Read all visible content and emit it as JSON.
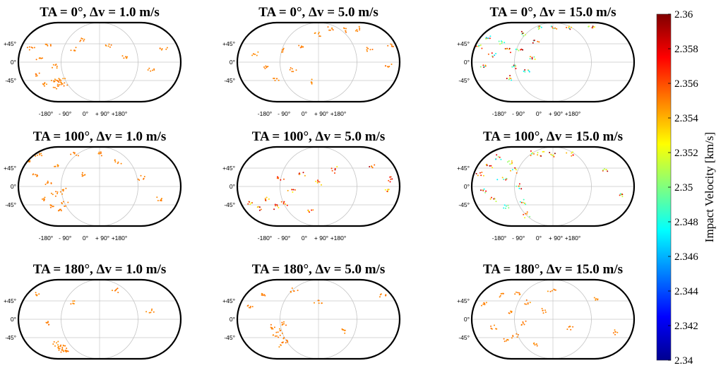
{
  "panels": [
    {
      "title": "TA = 0°, Δv = 1.0 m/s",
      "ta_deg": 0,
      "dv_ms": 1.0
    },
    {
      "title": "TA = 0°, Δv = 5.0 m/s",
      "ta_deg": 0,
      "dv_ms": 5.0
    },
    {
      "title": "TA = 0°, Δv = 15.0 m/s",
      "ta_deg": 0,
      "dv_ms": 15.0
    },
    {
      "title": "TA = 100°, Δv = 1.0 m/s",
      "ta_deg": 100,
      "dv_ms": 1.0
    },
    {
      "title": "TA = 100°, Δv = 5.0 m/s",
      "ta_deg": 100,
      "dv_ms": 5.0
    },
    {
      "title": "TA = 100°, Δv = 15.0 m/s",
      "ta_deg": 100,
      "dv_ms": 15.0
    },
    {
      "title": "TA = 180°, Δv = 1.0 m/s",
      "ta_deg": 180,
      "dv_ms": 1.0
    },
    {
      "title": "TA = 180°, Δv = 5.0 m/s",
      "ta_deg": 180,
      "dv_ms": 5.0
    },
    {
      "title": "TA = 180°, Δv = 15.0 m/s",
      "ta_deg": 180,
      "dv_ms": 15.0
    }
  ],
  "axes": {
    "lat_ticks": [
      "+45°",
      "0°",
      "-45°"
    ],
    "lon_ticks": [
      "-180°",
      "- 90°",
      "0°",
      "+ 90°",
      "+180°"
    ]
  },
  "colorbar": {
    "label": "Impact Velocity [km/s]",
    "min": 2.34,
    "max": 2.36,
    "ticks": [
      "2.36",
      "2.358",
      "2.356",
      "2.354",
      "2.352",
      "2.35",
      "2.348",
      "2.346",
      "2.344",
      "2.342",
      "2.34"
    ],
    "colormap": "jet"
  },
  "chart_data": {
    "type": "scatter",
    "projection": "Hammer-type equal-area lunar surface map, longitude -180° to +180°, latitude -90° to +90°",
    "colorbar_range": [
      2.34,
      2.36
    ],
    "colorbar_label": "Impact Velocity [km/s]",
    "panels": [
      {
        "title": "TA = 0°, Δv = 1.0 m/s",
        "dominant_velocity": 2.355,
        "approx_points": [
          [
            -160,
            35
          ],
          [
            -120,
            40
          ],
          [
            -140,
            10
          ],
          [
            -100,
            -10
          ],
          [
            -60,
            30
          ],
          [
            -40,
            55
          ],
          [
            20,
            40
          ],
          [
            60,
            10
          ],
          [
            120,
            -20
          ],
          [
            150,
            30
          ],
          [
            -150,
            -30
          ],
          [
            -130,
            -55
          ],
          [
            -110,
            -45
          ],
          [
            -100,
            -60
          ],
          [
            -95,
            -50
          ],
          [
            -90,
            -40
          ],
          [
            -85,
            -55
          ]
        ]
      },
      {
        "title": "TA = 0°, Δv = 5.0 m/s",
        "dominant_velocity": 2.355,
        "approx_points": [
          [
            -150,
            20
          ],
          [
            -120,
            -10
          ],
          [
            -100,
            -40
          ],
          [
            -80,
            30
          ],
          [
            -60,
            -20
          ],
          [
            -40,
            40
          ],
          [
            -20,
            -50
          ],
          [
            0,
            70
          ],
          [
            30,
            80
          ],
          [
            60,
            80
          ],
          [
            90,
            80
          ],
          [
            120,
            30
          ],
          [
            160,
            -10
          ],
          [
            170,
            40
          ]
        ]
      },
      {
        "title": "TA = 0°, Δv = 15.0 m/s",
        "velocity_range": [
          2.346,
          2.36
        ],
        "approx_points": [
          [
            -170,
            40
          ],
          [
            -150,
            60
          ],
          [
            -140,
            20
          ],
          [
            -120,
            50
          ],
          [
            -160,
            -10
          ],
          [
            -110,
            30
          ],
          [
            -100,
            -40
          ],
          [
            -90,
            -10
          ],
          [
            -80,
            30
          ],
          [
            -70,
            70
          ],
          [
            -60,
            -20
          ],
          [
            -50,
            10
          ],
          [
            -40,
            50
          ],
          [
            -30,
            85
          ],
          [
            0,
            85
          ],
          [
            40,
            85
          ],
          [
            90,
            85
          ]
        ]
      },
      {
        "title": "TA = 100°, Δv = 1.0 m/s",
        "dominant_velocity": 2.355,
        "approx_points": [
          [
            -170,
            60
          ],
          [
            -150,
            30
          ],
          [
            -140,
            80
          ],
          [
            -120,
            10
          ],
          [
            -100,
            50
          ],
          [
            -80,
            -10
          ],
          [
            -60,
            80
          ],
          [
            -40,
            30
          ],
          [
            0,
            80
          ],
          [
            40,
            60
          ],
          [
            100,
            20
          ],
          [
            140,
            -30
          ],
          [
            -130,
            -30
          ],
          [
            -110,
            -50
          ],
          [
            -100,
            -20
          ],
          [
            -90,
            -60
          ],
          [
            -80,
            -40
          ]
        ]
      },
      {
        "title": "TA = 100°, Δv = 5.0 m/s",
        "velocity_range": [
          2.352,
          2.359
        ],
        "approx_points": [
          [
            -160,
            -40
          ],
          [
            -140,
            -55
          ],
          [
            -120,
            -30
          ],
          [
            -100,
            -50
          ],
          [
            -90,
            20
          ],
          [
            -80,
            -40
          ],
          [
            -60,
            -10
          ],
          [
            -40,
            30
          ],
          [
            -20,
            -60
          ],
          [
            0,
            10
          ],
          [
            40,
            40
          ],
          [
            120,
            50
          ],
          [
            160,
            -10
          ],
          [
            170,
            20
          ]
        ]
      },
      {
        "title": "TA = 100°, Δv = 15.0 m/s",
        "velocity_range": [
          2.347,
          2.36
        ],
        "approx_points": [
          [
            -170,
            30
          ],
          [
            -160,
            -10
          ],
          [
            -150,
            50
          ],
          [
            -140,
            -30
          ],
          [
            -130,
            70
          ],
          [
            -120,
            20
          ],
          [
            -110,
            -50
          ],
          [
            -100,
            60
          ],
          [
            -90,
            40
          ],
          [
            -80,
            0
          ],
          [
            -70,
            -40
          ],
          [
            -60,
            -70
          ],
          [
            -50,
            80
          ],
          [
            -30,
            80
          ],
          [
            0,
            80
          ],
          [
            40,
            80
          ],
          [
            120,
            40
          ],
          [
            160,
            -20
          ]
        ]
      },
      {
        "title": "TA = 180°, Δv = 1.0 m/s",
        "dominant_velocity": 2.355,
        "approx_points": [
          [
            -150,
            60
          ],
          [
            -120,
            -10
          ],
          [
            -60,
            40
          ],
          [
            40,
            70
          ],
          [
            120,
            20
          ],
          [
            -100,
            -60
          ],
          [
            -95,
            -70
          ],
          [
            -90,
            -75
          ],
          [
            -85,
            -65
          ],
          [
            -80,
            -75
          ]
        ]
      },
      {
        "title": "TA = 180°, Δv = 5.0 m/s",
        "dominant_velocity": 2.355,
        "approx_points": [
          [
            -160,
            30
          ],
          [
            -130,
            60
          ],
          [
            -110,
            -20
          ],
          [
            -100,
            -40
          ],
          [
            -90,
            -30
          ],
          [
            -85,
            -60
          ],
          [
            -80,
            -10
          ],
          [
            -75,
            -50
          ],
          [
            -60,
            70
          ],
          [
            0,
            40
          ],
          [
            60,
            -30
          ],
          [
            150,
            60
          ]
        ]
      },
      {
        "title": "TA = 180°, Δv = 15.0 m/s",
        "dominant_velocity": 2.355,
        "approx_points": [
          [
            -160,
            40
          ],
          [
            -140,
            -20
          ],
          [
            -120,
            60
          ],
          [
            -110,
            -50
          ],
          [
            -100,
            20
          ],
          [
            -90,
            -40
          ],
          [
            -80,
            60
          ],
          [
            -70,
            -10
          ],
          [
            -60,
            40
          ],
          [
            -40,
            -60
          ],
          [
            -20,
            20
          ],
          [
            0,
            70
          ],
          [
            40,
            -20
          ],
          [
            100,
            50
          ],
          [
            150,
            -30
          ]
        ]
      }
    ]
  }
}
